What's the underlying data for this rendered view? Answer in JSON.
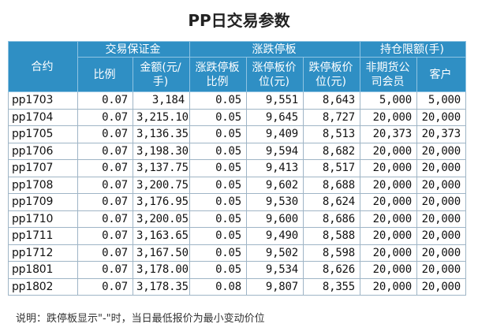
{
  "title": "PP日交易参数",
  "headers": {
    "contract": "合约",
    "margin_group": "交易保证金",
    "margin_ratio": "比例",
    "margin_amount": "金额(元/手)",
    "limit_group": "涨跌停板",
    "limit_ratio": "涨跌停板比例",
    "limit_up": "涨停板价位(元)",
    "limit_down": "跌停板价位(元)",
    "position_group": "持仓限额(手)",
    "non_futures_member": "非期货公司会员",
    "client": "客户"
  },
  "rows": [
    [
      "pp1703",
      "0.07",
      "3,184",
      "0.05",
      "9,551",
      "8,643",
      "5,000",
      "5,000"
    ],
    [
      "pp1704",
      "0.07",
      "3,215.10",
      "0.05",
      "9,645",
      "8,727",
      "20,000",
      "20,000"
    ],
    [
      "pp1705",
      "0.07",
      "3,136.35",
      "0.05",
      "9,409",
      "8,513",
      "20,373",
      "20,373"
    ],
    [
      "pp1706",
      "0.07",
      "3,198.30",
      "0.05",
      "9,594",
      "8,682",
      "20,000",
      "20,000"
    ],
    [
      "pp1707",
      "0.07",
      "3,137.75",
      "0.05",
      "9,413",
      "8,517",
      "20,000",
      "20,000"
    ],
    [
      "pp1708",
      "0.07",
      "3,200.75",
      "0.05",
      "9,602",
      "8,688",
      "20,000",
      "20,000"
    ],
    [
      "pp1709",
      "0.07",
      "3,176.95",
      "0.05",
      "9,530",
      "8,624",
      "20,000",
      "20,000"
    ],
    [
      "pp1710",
      "0.07",
      "3,200.05",
      "0.05",
      "9,600",
      "8,686",
      "20,000",
      "20,000"
    ],
    [
      "pp1711",
      "0.07",
      "3,163.65",
      "0.05",
      "9,490",
      "8,588",
      "20,000",
      "20,000"
    ],
    [
      "pp1712",
      "0.07",
      "3,167.50",
      "0.05",
      "9,502",
      "8,598",
      "20,000",
      "20,000"
    ],
    [
      "pp1801",
      "0.07",
      "3,178.00",
      "0.05",
      "9,534",
      "8,626",
      "20,000",
      "20,000"
    ],
    [
      "pp1802",
      "0.07",
      "3,178.35",
      "0.08",
      "9,807",
      "8,355",
      "20,000",
      "20,000"
    ]
  ],
  "note": "说明：跌停板显示\"-\"时，当日最低报价为最小变动价位"
}
